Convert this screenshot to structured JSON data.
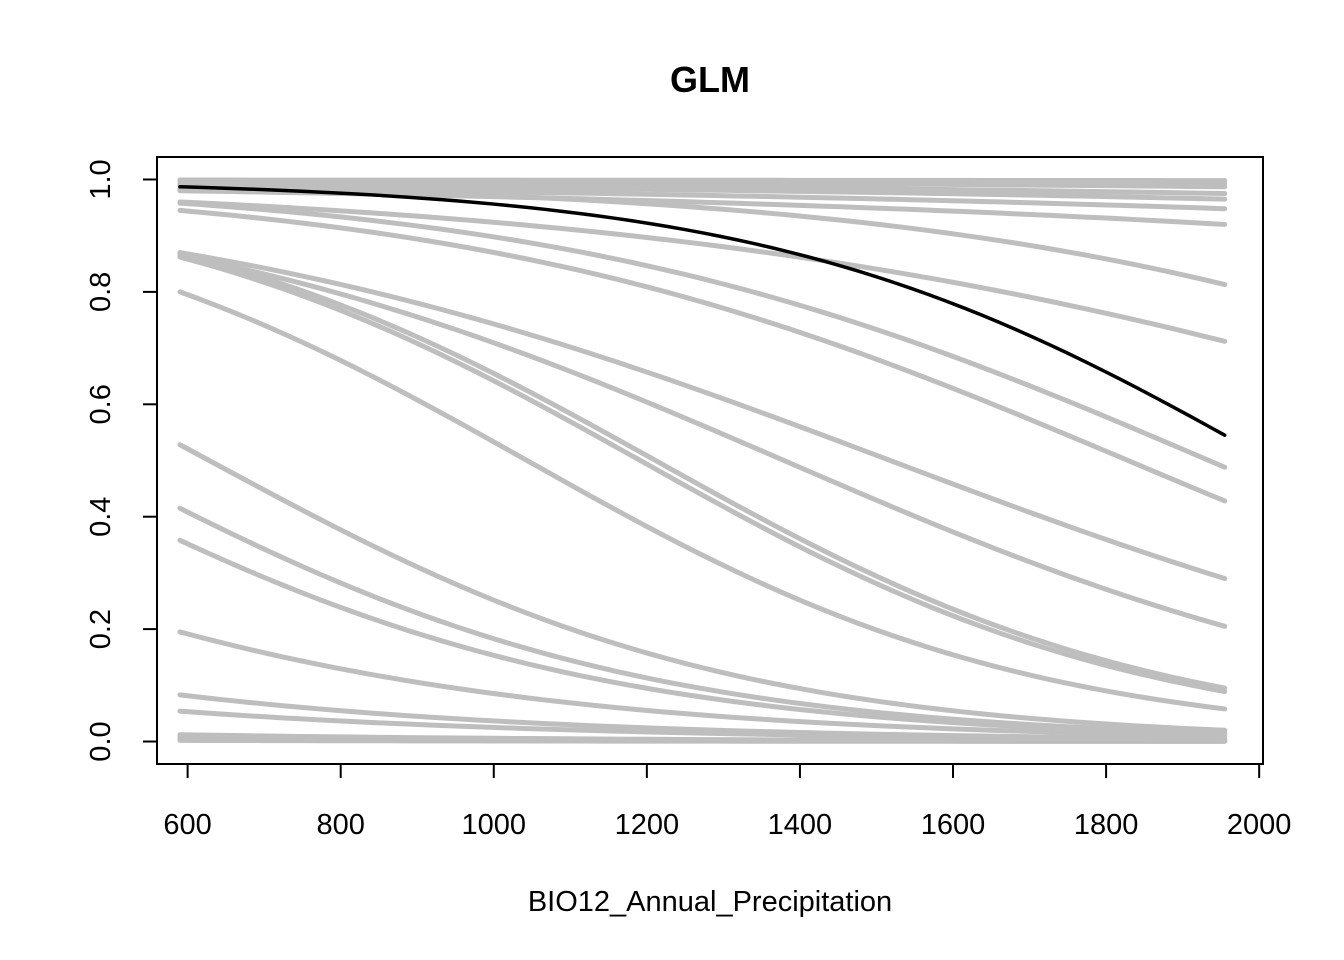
{
  "chart_data": {
    "type": "line",
    "title": "GLM",
    "xlabel": "BIO12_Annual_Precipitation",
    "ylabel": "",
    "xlim": [
      560,
      2005
    ],
    "ylim": [
      -0.04,
      1.04
    ],
    "x_ticks": [
      "600",
      "800",
      "1000",
      "1200",
      "1400",
      "1600",
      "1800",
      "2000"
    ],
    "y_ticks": [
      "0.0",
      "0.2",
      "0.4",
      "0.6",
      "0.8",
      "1.0"
    ],
    "x_range": [
      590,
      1955
    ],
    "grid": false,
    "legend": "none",
    "colors": {
      "replicate": "#bebebe",
      "mean": "#000000"
    },
    "replicates": [
      {
        "start": 0.999,
        "end": 0.998
      },
      {
        "start": 0.998,
        "end": 0.993
      },
      {
        "start": 0.997,
        "end": 0.987
      },
      {
        "start": 0.993,
        "end": 0.975
      },
      {
        "start": 0.99,
        "end": 0.965
      },
      {
        "start": 0.985,
        "end": 0.948
      },
      {
        "start": 0.98,
        "end": 0.92
      },
      {
        "start": 0.988,
        "end": 0.813
      },
      {
        "start": 0.96,
        "end": 0.712
      },
      {
        "start": 0.958,
        "end": 0.488
      },
      {
        "start": 0.945,
        "end": 0.428
      },
      {
        "start": 0.87,
        "end": 0.29
      },
      {
        "start": 0.865,
        "end": 0.205
      },
      {
        "start": 0.868,
        "end": 0.095
      },
      {
        "start": 0.862,
        "end": 0.089
      },
      {
        "start": 0.8,
        "end": 0.058
      },
      {
        "start": 0.528,
        "end": 0.02
      },
      {
        "start": 0.415,
        "end": 0.015
      },
      {
        "start": 0.358,
        "end": 0.013
      },
      {
        "start": 0.195,
        "end": 0.01
      },
      {
        "start": 0.083,
        "end": 0.005
      },
      {
        "start": 0.054,
        "end": 0.004
      },
      {
        "start": 0.012,
        "end": 0.001
      },
      {
        "start": 0.008,
        "end": 0.0008
      },
      {
        "start": 0.005,
        "end": 0.0005
      },
      {
        "start": 0.002,
        "end": 0.0002
      }
    ],
    "mean_curve": {
      "start": 0.987,
      "end": 0.545
    }
  }
}
